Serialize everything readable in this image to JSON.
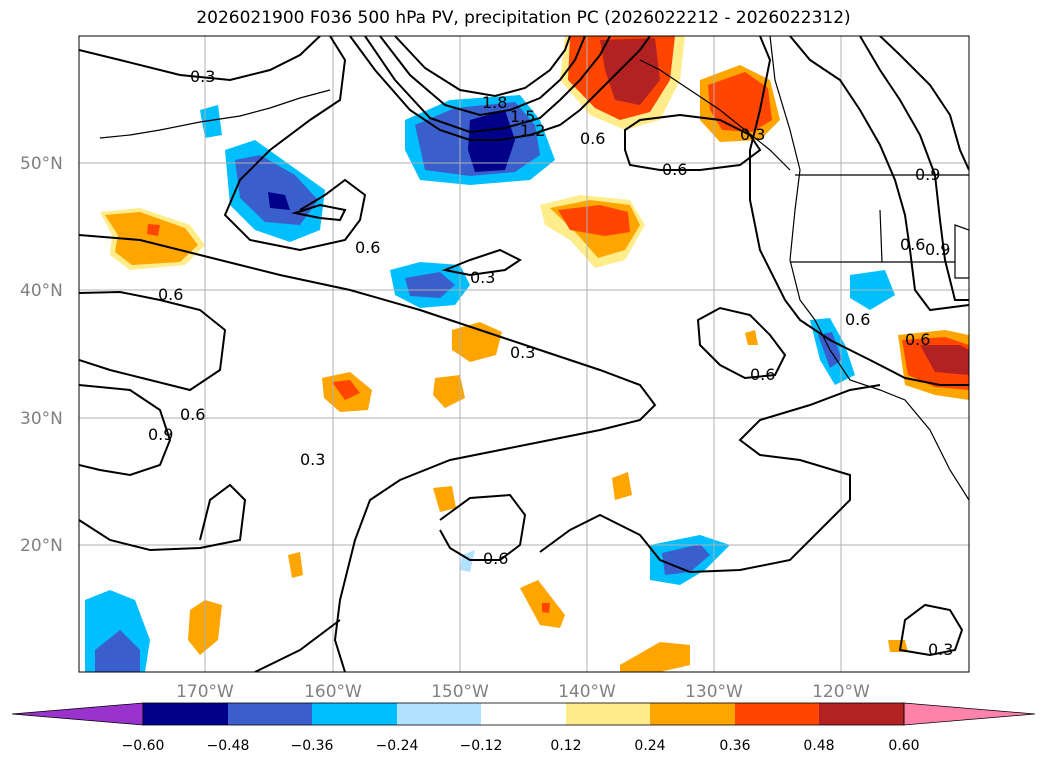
{
  "title": "2026021900 F036 500 hPa PV, precipitation PC (2026022212 - 2026022312)",
  "lat_labels": [
    "50°N",
    "40°N",
    "30°N",
    "20°N"
  ],
  "lon_labels": [
    "170°W",
    "160°W",
    "150°W",
    "140°W",
    "130°W",
    "120°W"
  ],
  "contour_labels": [
    "0.3",
    "1.8",
    "1.5",
    "1.2",
    "0.6",
    "0.6",
    "0.3",
    "0.9",
    "0.6",
    "0.3",
    "0.6",
    "0.9",
    "0.6",
    "0.3",
    "0.6",
    "0.6",
    "0.9",
    "0.6",
    "0.6",
    "0.3",
    "0.6",
    "0.3"
  ],
  "colorbar": {
    "ticks": [
      "−0.60",
      "−0.48",
      "−0.36",
      "−0.24",
      "−0.12",
      "0.12",
      "0.24",
      "0.36",
      "0.48",
      "0.60"
    ],
    "colors": [
      "#9a32cd",
      "#00008b",
      "#3a5fcd",
      "#00bfff",
      "#b0e2ff",
      "#ffffff",
      "#ffec8b",
      "#ffa500",
      "#ff4500",
      "#b22222",
      "#ff82ab"
    ]
  },
  "shade_colors": {
    "neg1": "#b0e2ff",
    "neg2": "#00bfff",
    "neg3": "#3a5fcd",
    "neg4": "#00008b",
    "pos1": "#ffec8b",
    "pos2": "#ffa500",
    "pos3": "#ff4500",
    "pos4": "#b22222"
  }
}
